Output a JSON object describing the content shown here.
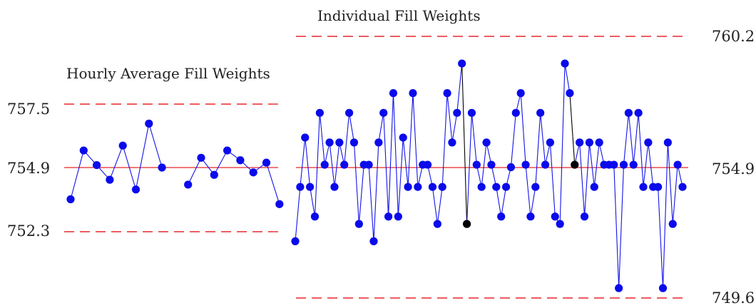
{
  "colors": {
    "limit": "#e8262b",
    "center": "#e8262b",
    "point": "#0a0aeb",
    "signal": "#000000",
    "line": "#1414e8"
  },
  "chart_data": [
    {
      "type": "line",
      "title": "Hourly Average Fill Weights",
      "center_label": "754.9",
      "ucl_label": "757.5",
      "lcl_label": "752.3",
      "center": 754.9,
      "ucl": 757.5,
      "lcl": 752.3,
      "ylim": [
        749.6,
        760.2
      ],
      "grid": false,
      "segments": [
        [
          753.6,
          755.6,
          755.0,
          754.4,
          755.8,
          754.0,
          756.7,
          754.9
        ],
        [
          754.2,
          755.3,
          754.6,
          755.6,
          755.2,
          754.7,
          755.1,
          753.4
        ]
      ]
    },
    {
      "type": "line",
      "title": "Individual Fill Weights",
      "center_label": "754.9",
      "ucl_label": "760.2",
      "lcl_label": "749.6",
      "center": 754.9,
      "ucl": 760.2,
      "lcl": 749.6,
      "ylim": [
        749.6,
        760.2
      ],
      "grid": false,
      "values": [
        751.9,
        754.1,
        756.1,
        754.1,
        752.9,
        757.1,
        755.0,
        755.9,
        754.1,
        755.9,
        755.0,
        757.1,
        755.9,
        752.6,
        755.0,
        755.0,
        751.9,
        755.9,
        757.1,
        752.9,
        757.9,
        752.9,
        756.1,
        754.1,
        757.9,
        754.1,
        755.0,
        755.0,
        754.1,
        752.6,
        754.1,
        757.9,
        755.9,
        757.1,
        759.1,
        752.6,
        757.1,
        755.0,
        754.1,
        755.9,
        755.0,
        754.1,
        752.9,
        754.1,
        754.9,
        757.1,
        757.9,
        755.0,
        752.9,
        754.1,
        757.1,
        755.0,
        755.9,
        752.9,
        752.6,
        759.1,
        757.9,
        755.0,
        755.9,
        752.9,
        755.9,
        754.1,
        755.9,
        755.0,
        755.0,
        755.0,
        750.0,
        755.0,
        757.1,
        755.0,
        757.1,
        754.1,
        755.9,
        754.1,
        754.1,
        750.0,
        755.9,
        752.6,
        755.0,
        754.1
      ],
      "signal_points": [
        34,
        35,
        56,
        57
      ]
    }
  ]
}
